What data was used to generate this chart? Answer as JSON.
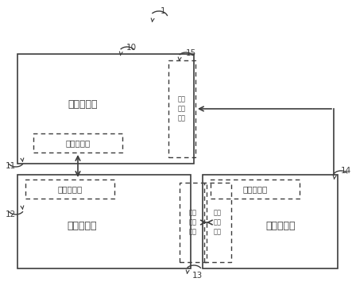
{
  "bg_color": "#ffffff",
  "lc": "#3c3c3c",
  "label_1": "1",
  "label_10": "10",
  "label_11": "11",
  "label_12": "12",
  "label_13": "13",
  "label_14": "14",
  "label_15": "15",
  "text_pcb1": "第一电路板",
  "text_pcb2": "第二电路板",
  "text_pcb3": "第三电路板",
  "text_conn1a": "第一连接器",
  "text_conn1b": "第一连接器",
  "text_conn3": "第三连接器",
  "text_cam1": "摄像\n模组\n一号",
  "text_cam2": "摄像\n模组\n二号",
  "text_cam3": "摄像\n模组\n二号",
  "fs_label": 7.5,
  "fs_pcb": 9.0,
  "fs_conn": 7.5,
  "fs_cam": 6.0,
  "pcb1": [
    22,
    68,
    222,
    138
  ],
  "pcb2": [
    22,
    220,
    218,
    118
  ],
  "pcb3": [
    255,
    220,
    170,
    118
  ],
  "conn1a": [
    42,
    168,
    112,
    24
  ],
  "conn1b": [
    32,
    226,
    112,
    24
  ],
  "conn3": [
    265,
    226,
    112,
    24
  ],
  "cam1": [
    212,
    76,
    34,
    122
  ],
  "cam2": [
    226,
    230,
    34,
    100
  ],
  "cam3": [
    257,
    230,
    34,
    100
  ]
}
